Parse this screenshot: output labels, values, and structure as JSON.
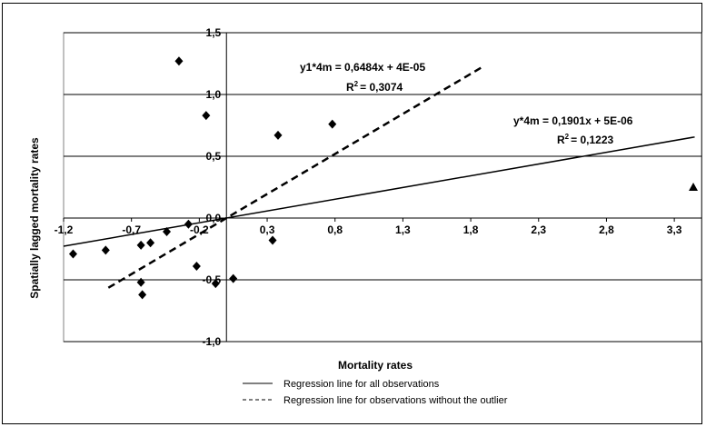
{
  "chart_data": {
    "type": "scatter",
    "xlabel": "Mortality rates",
    "ylabel": "Spatially lagged mortality rates",
    "xlim": [
      -1.2,
      3.5
    ],
    "ylim": [
      -1.0,
      1.5
    ],
    "x_ticks": [
      "-1,2",
      "-0,7",
      "-0,2",
      "0,3",
      "0,8",
      "1,3",
      "1,8",
      "2,3",
      "2,8",
      "3,3"
    ],
    "x_tick_values": [
      -1.2,
      -0.7,
      -0.2,
      0.3,
      0.8,
      1.3,
      1.8,
      2.3,
      2.8,
      3.3
    ],
    "y_ticks": [
      "1,5",
      "1,0",
      "0,5",
      "0,0",
      "-0,5",
      "-1,0"
    ],
    "y_tick_values": [
      1.5,
      1.0,
      0.5,
      0.0,
      -0.5,
      -1.0
    ],
    "grid": "horizontal",
    "series": [
      {
        "marker": "diamond",
        "points": [
          [
            -1.13,
            -0.29
          ],
          [
            -0.89,
            -0.26
          ],
          [
            -0.63,
            -0.22
          ],
          [
            -0.56,
            -0.2
          ],
          [
            -0.44,
            -0.11
          ],
          [
            -0.35,
            1.27
          ],
          [
            -0.28,
            -0.05
          ],
          [
            -0.22,
            -0.39
          ],
          [
            -0.15,
            0.83
          ],
          [
            -0.08,
            -0.53
          ],
          [
            0.05,
            -0.49
          ],
          [
            0.34,
            -0.18
          ],
          [
            0.38,
            0.67
          ],
          [
            0.78,
            0.76
          ],
          [
            -0.62,
            -0.62
          ],
          [
            -0.63,
            -0.52
          ]
        ]
      },
      {
        "marker": "triangle",
        "points": [
          [
            3.44,
            0.25
          ]
        ]
      }
    ],
    "regression_lines": [
      {
        "equation": "y*4m = 0,1901x + 5E-06",
        "r2_label": "R",
        "r2_value": "= 0,1223",
        "slope": 0.1901,
        "intercept": 5e-06,
        "x_range": [
          -1.2,
          3.45
        ],
        "style": "solid"
      },
      {
        "equation": "y1*4m = 0,6484x + 4E-05",
        "r2_label": "R",
        "r2_value": "= 0,3074",
        "slope": 0.6484,
        "intercept": 4e-05,
        "x_range": [
          -0.87,
          1.9
        ],
        "style": "dashed"
      }
    ],
    "legend": {
      "placement": "bottom",
      "items": [
        {
          "label": "Regression line for all observations",
          "style": "solid"
        },
        {
          "label": "Regression line for observations without the outlier",
          "style": "dashed"
        }
      ]
    }
  }
}
